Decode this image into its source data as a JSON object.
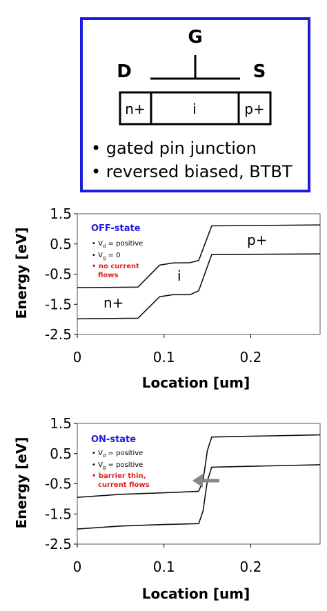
{
  "device": {
    "gate_label": "G",
    "drain_label": "D",
    "source_label": "S",
    "regions": [
      "n+",
      "i",
      "p+"
    ],
    "bullets": [
      "gated pin junction",
      "reversed biased, BTBT"
    ],
    "border_color": "#1c1ce0"
  },
  "off_chart": {
    "ylabel": "Energy [eV]",
    "xlabel": "Location [um]",
    "yticks": [
      "1.5",
      "0.5",
      "-0.5",
      "-1.5",
      "-2.5"
    ],
    "xticks": [
      "0",
      "0.1",
      "0.2"
    ],
    "state_title": "OFF-state",
    "notes": [
      {
        "base": "V",
        "sub": "d",
        "rest": " = positive"
      },
      {
        "base": "V",
        "sub": "g",
        "rest": " = 0"
      }
    ],
    "red_note": [
      "no current",
      "flows"
    ],
    "region_labels": [
      "n+",
      "i",
      "p+"
    ]
  },
  "on_chart": {
    "ylabel": "Energy [eV]",
    "xlabel": "Location [um]",
    "yticks": [
      "1.5",
      "0.5",
      "-0.5",
      "-1.5",
      "-2.5"
    ],
    "xticks": [
      "0",
      "0.1",
      "0.2"
    ],
    "state_title": "ON-state",
    "notes": [
      {
        "base": "V",
        "sub": "d",
        "rest": " = positive"
      },
      {
        "base": "V",
        "sub": "g",
        "rest": " = positive"
      }
    ],
    "red_note": [
      "barrier thin,",
      "current flows"
    ]
  },
  "chart_data": [
    {
      "type": "line",
      "title": "OFF-state",
      "xlabel": "Location [um]",
      "ylabel": "Energy [eV]",
      "xlim": [
        0,
        0.28
      ],
      "ylim": [
        -2.5,
        1.5
      ],
      "series": [
        {
          "x": [
            0,
            0.07,
            0.095,
            0.11,
            0.13,
            0.14,
            0.155,
            0.28
          ],
          "y": [
            -0.95,
            -0.93,
            -0.2,
            -0.13,
            -0.12,
            -0.05,
            1.1,
            1.13
          ]
        },
        {
          "x": [
            0,
            0.07,
            0.095,
            0.11,
            0.13,
            0.14,
            0.155,
            0.28
          ],
          "y": [
            -1.98,
            -1.96,
            -1.25,
            -1.18,
            -1.18,
            -1.05,
            0.15,
            0.17
          ]
        }
      ]
    },
    {
      "type": "line",
      "title": "ON-state",
      "xlabel": "Location [um]",
      "ylabel": "Energy [eV]",
      "xlim": [
        0,
        0.28
      ],
      "ylim": [
        -2.5,
        1.5
      ],
      "series": [
        {
          "x": [
            0,
            0.05,
            0.1,
            0.14,
            0.145,
            0.15,
            0.155,
            0.28
          ],
          "y": [
            -0.95,
            -0.85,
            -0.8,
            -0.75,
            -0.4,
            0.6,
            1.05,
            1.12
          ]
        },
        {
          "x": [
            0,
            0.05,
            0.1,
            0.14,
            0.145,
            0.15,
            0.155,
            0.28
          ],
          "y": [
            -2.0,
            -1.9,
            -1.85,
            -1.82,
            -1.4,
            -0.4,
            0.05,
            0.13
          ]
        }
      ]
    }
  ]
}
